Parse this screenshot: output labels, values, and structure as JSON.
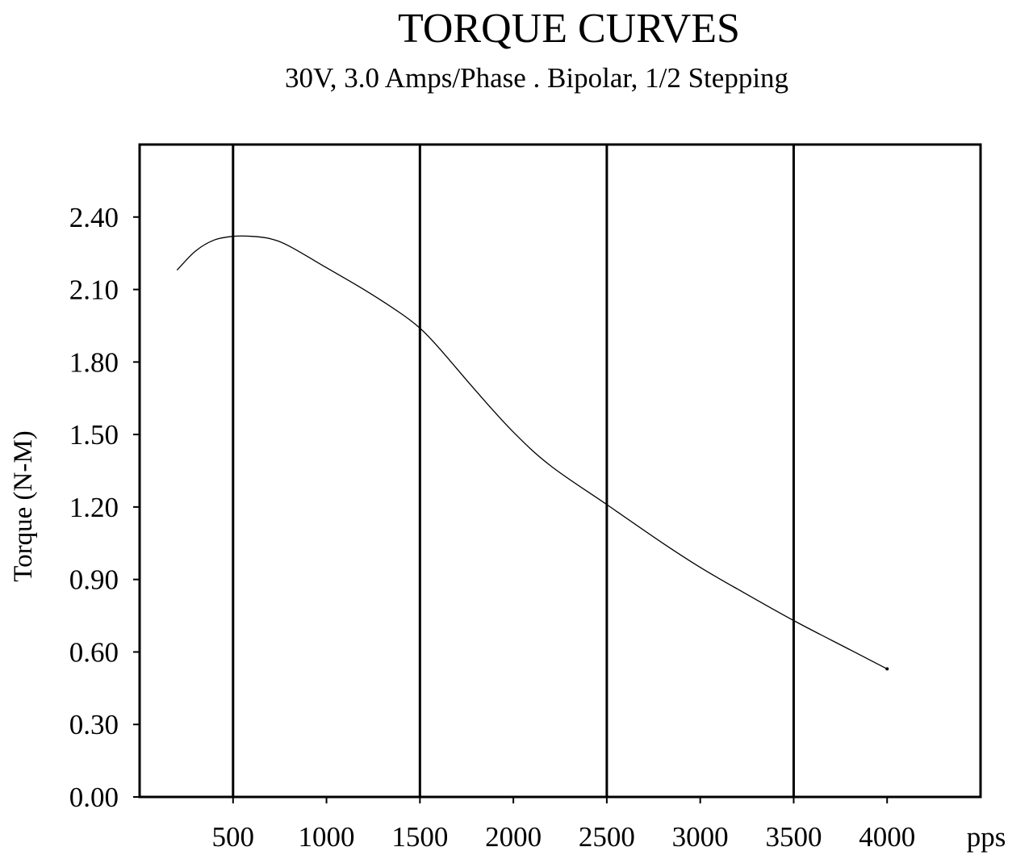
{
  "chart_data": {
    "type": "line",
    "title": "TORQUE CURVES",
    "subtitle": "30V, 3.0 Amps/Phase . Bipolar, 1/2 Stepping",
    "ylabel": "Torque (N-M)",
    "xunit": "pps",
    "xlim": [
      0,
      4500
    ],
    "ylim": [
      0,
      2.7
    ],
    "x_ticks": [
      500,
      1000,
      1500,
      2000,
      2500,
      3000,
      3500,
      4000
    ],
    "x_tick_labels": [
      "500",
      "1000",
      "1500",
      "2000",
      "2500",
      "3000",
      "3500",
      "4000"
    ],
    "y_ticks": [
      0,
      0.3,
      0.6,
      0.9,
      1.2,
      1.5,
      1.8,
      2.1,
      2.4
    ],
    "y_tick_labels": [
      "0.00",
      "0.30",
      "0.60",
      "0.90",
      "1.20",
      "1.50",
      "1.80",
      "2.10",
      "2.40"
    ],
    "vertical_gridlines_at": [
      500,
      1500,
      2500,
      3500
    ],
    "grid": "vertical only",
    "series": [
      {
        "color": "#000000",
        "x": [
          200,
          300,
          400,
          500,
          600,
          700,
          800,
          1000,
          1200,
          1400,
          1500,
          1600,
          1800,
          2000,
          2200,
          2500,
          2800,
          3000,
          3200,
          3500,
          3800,
          4000
        ],
        "y": [
          2.18,
          2.26,
          2.305,
          2.32,
          2.32,
          2.31,
          2.28,
          2.19,
          2.1,
          2.0,
          1.94,
          1.86,
          1.68,
          1.51,
          1.37,
          1.21,
          1.05,
          0.95,
          0.86,
          0.73,
          0.61,
          0.53
        ]
      }
    ]
  }
}
